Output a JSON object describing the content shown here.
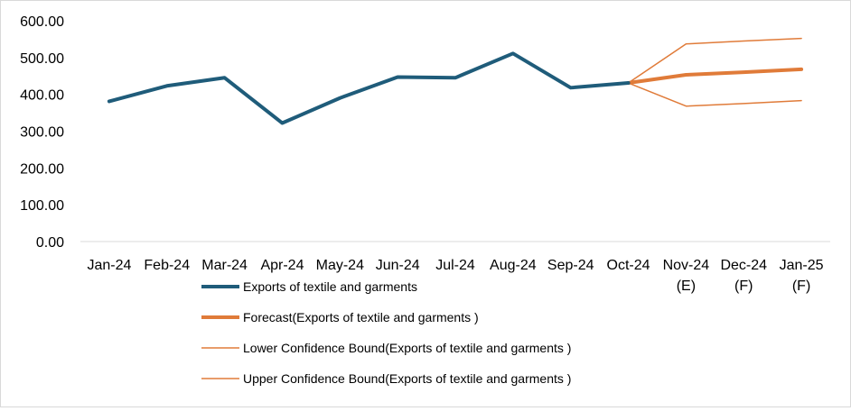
{
  "chart_data": {
    "type": "line",
    "title": "",
    "xlabel": "",
    "ylabel": "",
    "ylim": [
      0,
      600
    ],
    "yticks": [
      "0.00",
      "100.00",
      "200.00",
      "300.00",
      "400.00",
      "500.00",
      "600.00"
    ],
    "categories": [
      [
        "Jan-24"
      ],
      [
        "Feb-24"
      ],
      [
        "Mar-24"
      ],
      [
        "Apr-24"
      ],
      [
        "May-24"
      ],
      [
        "Jun-24"
      ],
      [
        "Jul-24"
      ],
      [
        "Aug-24"
      ],
      [
        "Sep-24"
      ],
      [
        "Oct-24"
      ],
      [
        "Nov-24",
        "(E)"
      ],
      [
        "Dec-24",
        "(F)"
      ],
      [
        "Jan-25",
        "(F)"
      ]
    ],
    "grid": false,
    "legend_position": "bottom-center",
    "series": [
      {
        "name": "Exports of textile and garments",
        "color": "#1f5c7a",
        "width": 4,
        "values": [
          381,
          423,
          445,
          322,
          390,
          447,
          445,
          511,
          418,
          431,
          null,
          null,
          null
        ]
      },
      {
        "name": "Forecast(Exports of textile and garments )",
        "color": "#e07b39",
        "width": 4,
        "values": [
          null,
          null,
          null,
          null,
          null,
          null,
          null,
          null,
          null,
          431,
          453,
          460,
          468
        ]
      },
      {
        "name": "Lower Confidence Bound(Exports of textile and garments )",
        "color": "#e07b39",
        "width": 1.5,
        "values": [
          null,
          null,
          null,
          null,
          null,
          null,
          null,
          null,
          null,
          431,
          368,
          375,
          383
        ]
      },
      {
        "name": "Upper Confidence Bound(Exports of textile and garments )",
        "color": "#e07b39",
        "width": 1.5,
        "values": [
          null,
          null,
          null,
          null,
          null,
          null,
          null,
          null,
          null,
          431,
          537,
          545,
          552
        ]
      }
    ]
  }
}
